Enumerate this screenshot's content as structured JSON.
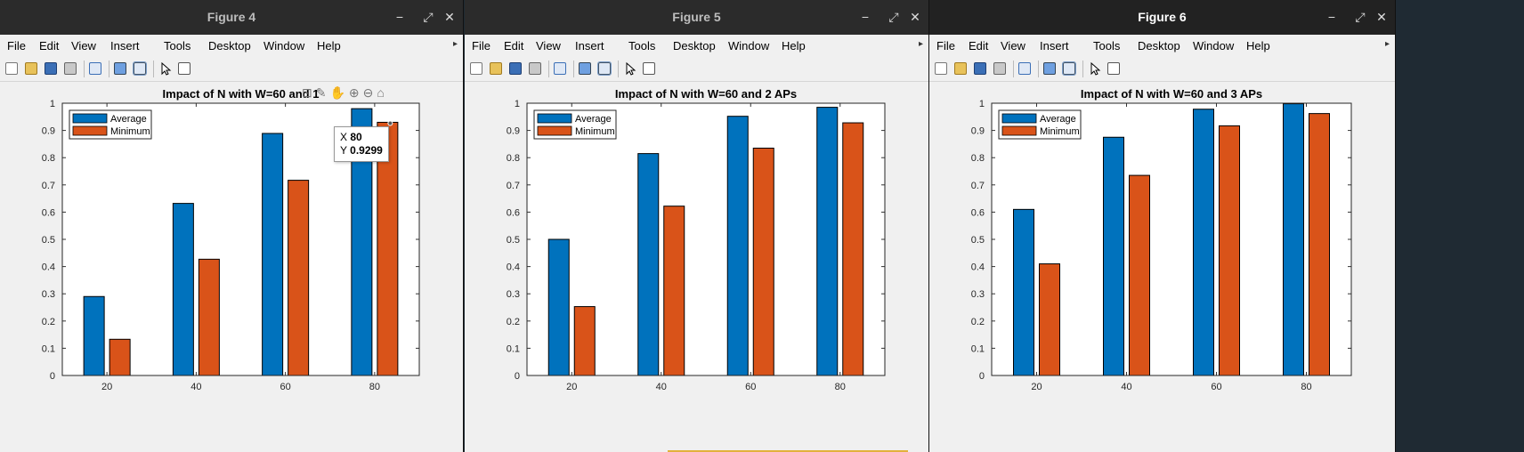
{
  "windows": [
    {
      "title": "Figure 4",
      "active": false,
      "chart_data": {
        "type": "bar",
        "title": "Impact of N with W=60 and 1",
        "categories": [
          "20",
          "40",
          "60",
          "80"
        ],
        "series": [
          {
            "name": "Average",
            "color": "#0072bd",
            "values": [
              0.29,
              0.632,
              0.889,
              0.98
            ]
          },
          {
            "name": "Minimum",
            "color": "#d95319",
            "values": [
              0.133,
              0.427,
              0.717,
              0.9299
            ]
          }
        ],
        "ylim": [
          0,
          1
        ],
        "yticks": [
          "0",
          "0.1",
          "0.2",
          "0.3",
          "0.4",
          "0.5",
          "0.6",
          "0.7",
          "0.8",
          "0.9",
          "1"
        ],
        "legend": "top-left"
      },
      "datatip": {
        "x_label": "X",
        "x_value": "80",
        "y_label": "Y",
        "y_value": "0.9299"
      }
    },
    {
      "title": "Figure 5",
      "active": false,
      "chart_data": {
        "type": "bar",
        "title": "Impact of N with W=60 and 2 APs",
        "categories": [
          "20",
          "40",
          "60",
          "80"
        ],
        "series": [
          {
            "name": "Average",
            "color": "#0072bd",
            "values": [
              0.5,
              0.815,
              0.952,
              0.985
            ]
          },
          {
            "name": "Minimum",
            "color": "#d95319",
            "values": [
              0.253,
              0.622,
              0.835,
              0.928
            ]
          }
        ],
        "ylim": [
          0,
          1
        ],
        "yticks": [
          "0",
          "0.1",
          "0.2",
          "0.3",
          "0.4",
          "0.5",
          "0.6",
          "0.7",
          "0.8",
          "0.9",
          "1"
        ],
        "legend": "top-left"
      }
    },
    {
      "title": "Figure 6",
      "active": true,
      "chart_data": {
        "type": "bar",
        "title": "Impact of N with W=60 and 3 APs",
        "categories": [
          "20",
          "40",
          "60",
          "80"
        ],
        "series": [
          {
            "name": "Average",
            "color": "#0072bd",
            "values": [
              0.61,
              0.875,
              0.978,
              0.998
            ]
          },
          {
            "name": "Minimum",
            "color": "#d95319",
            "values": [
              0.41,
              0.735,
              0.917,
              0.962
            ]
          }
        ],
        "ylim": [
          0,
          1
        ],
        "yticks": [
          "0",
          "0.1",
          "0.2",
          "0.3",
          "0.4",
          "0.5",
          "0.6",
          "0.7",
          "0.8",
          "0.9",
          "1"
        ],
        "legend": "top-left"
      }
    }
  ],
  "menu": [
    "File",
    "Edit",
    "View",
    "Insert",
    "Tools",
    "Desktop",
    "Window",
    "Help"
  ],
  "window_controls": {
    "minimize": "−",
    "maximize": "⤢",
    "close": "✕"
  },
  "toolbar_icons": [
    "new-figure-icon",
    "open-file-icon",
    "save-icon",
    "print-icon",
    "link-plot-icon",
    "insert-colorbar-icon",
    "insert-legend-icon",
    "edit-plot-icon",
    "property-inspector-icon"
  ],
  "axes_toolbar_icons": [
    "data-tip-icon",
    "brush-icon",
    "pan-icon",
    "zoom-in-icon",
    "zoom-out-icon",
    "restore-view-icon"
  ]
}
